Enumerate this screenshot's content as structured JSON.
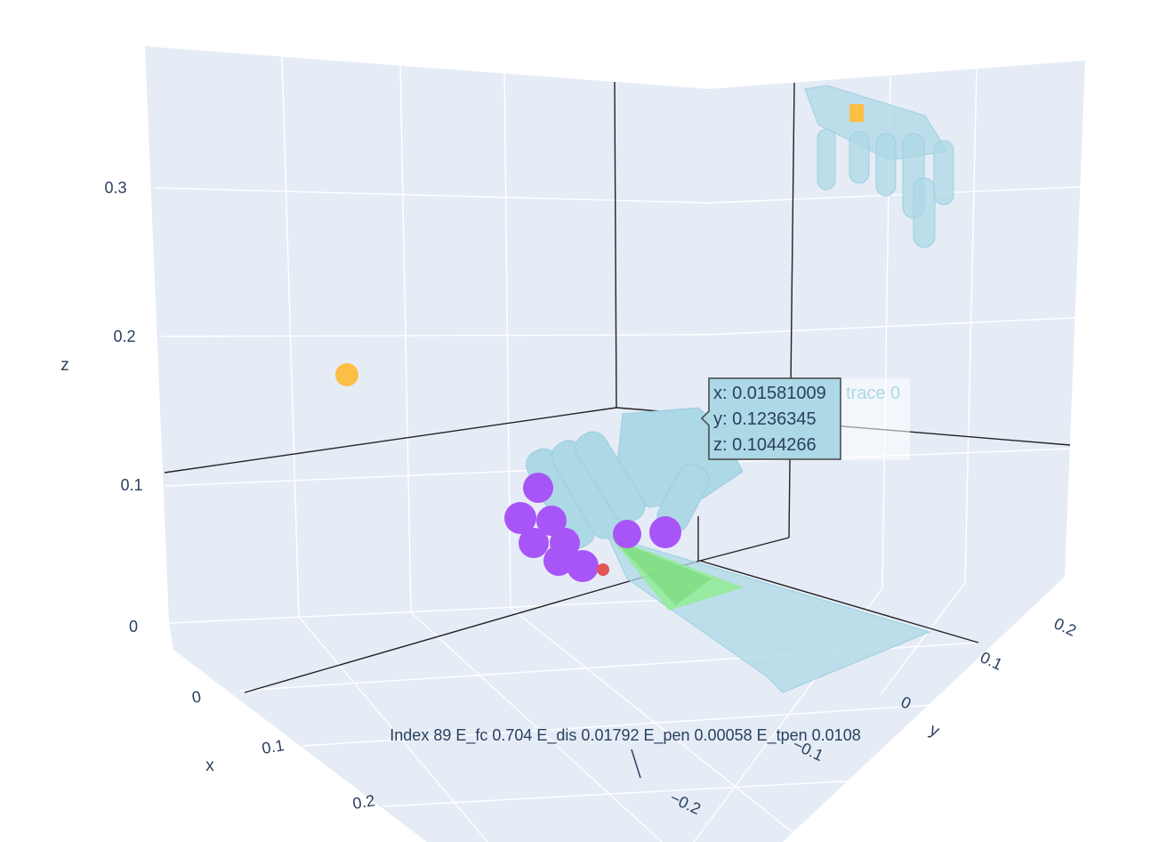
{
  "chart_data": {
    "type": "scatter",
    "projection": "3d",
    "axes": {
      "x": {
        "title": "x",
        "ticks": [
          "0",
          "0.1",
          "0.2"
        ]
      },
      "y": {
        "title": "y",
        "ticks": [
          "−0.2",
          "−0.1",
          "0",
          "0.1",
          "0.2"
        ]
      },
      "z": {
        "title": "z",
        "ticks": [
          "0",
          "0.1",
          "0.2",
          "0.3"
        ]
      }
    },
    "grid": true,
    "background": "#e5ecf6",
    "annotation": "Index 89  E_fc 0.704  E_dis 0.01792  E_pen 0.00058  E_tpen 0.0108",
    "hover": {
      "lines": [
        "x: 0.01581009",
        "y: 0.1236345",
        "z: 0.1044266"
      ],
      "trace_name": "trace 0",
      "color": "#add8e6"
    },
    "traces": [
      {
        "name": "trace 0",
        "kind": "mesh",
        "description": "hand mesh",
        "color": "#add8e6"
      },
      {
        "kind": "mesh",
        "description": "ghost hand mesh",
        "color": "#add8e6"
      },
      {
        "kind": "mesh",
        "description": "object surface",
        "color": "#add8e6"
      },
      {
        "kind": "mesh",
        "description": "contact cone",
        "color": "#90ee90"
      },
      {
        "kind": "markers",
        "description": "contact points",
        "color": "#a855f7"
      },
      {
        "kind": "marker",
        "description": "target point",
        "color": "#fbbf45"
      }
    ]
  }
}
